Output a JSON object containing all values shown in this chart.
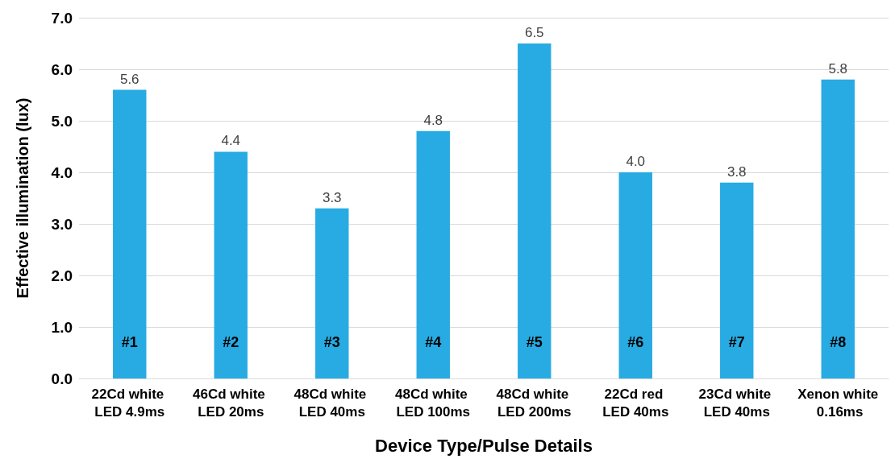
{
  "chart_data": {
    "type": "bar",
    "xlabel": "Device Type/Pulse Details",
    "ylabel": "Effective illumination (lux)",
    "categories": [
      "22Cd white LED 4.9ms",
      "46Cd white LED 20ms",
      "48Cd white LED 40ms",
      "48Cd white LED 100ms",
      "48Cd white LED 200ms",
      "22Cd red LED 40ms",
      "23Cd white LED 40ms",
      "Xenon white 0.16ms"
    ],
    "values": [
      5.6,
      4.4,
      3.3,
      4.8,
      6.5,
      4.0,
      3.8,
      5.8
    ],
    "value_labels": [
      "5.6",
      "4.4",
      "3.3",
      "4.8",
      "6.5",
      "4.0",
      "3.8",
      "5.8"
    ],
    "color": "#27abe2",
    "ylim": [
      0,
      7
    ],
    "yticks": [
      {
        "value": 0,
        "label": "0.0"
      },
      {
        "value": 1,
        "label": "1.0"
      },
      {
        "value": 2,
        "label": "2.0"
      },
      {
        "value": 3,
        "label": "3.0"
      },
      {
        "value": 4,
        "label": "4.0"
      },
      {
        "value": 5,
        "label": "5.0"
      },
      {
        "value": 6,
        "label": "6.0"
      },
      {
        "value": 7,
        "label": "7.0"
      }
    ],
    "grid": "y",
    "annotations": [
      "#1",
      "#2",
      "#3",
      "#4",
      "#5",
      "#6",
      "#7",
      "#8"
    ]
  }
}
